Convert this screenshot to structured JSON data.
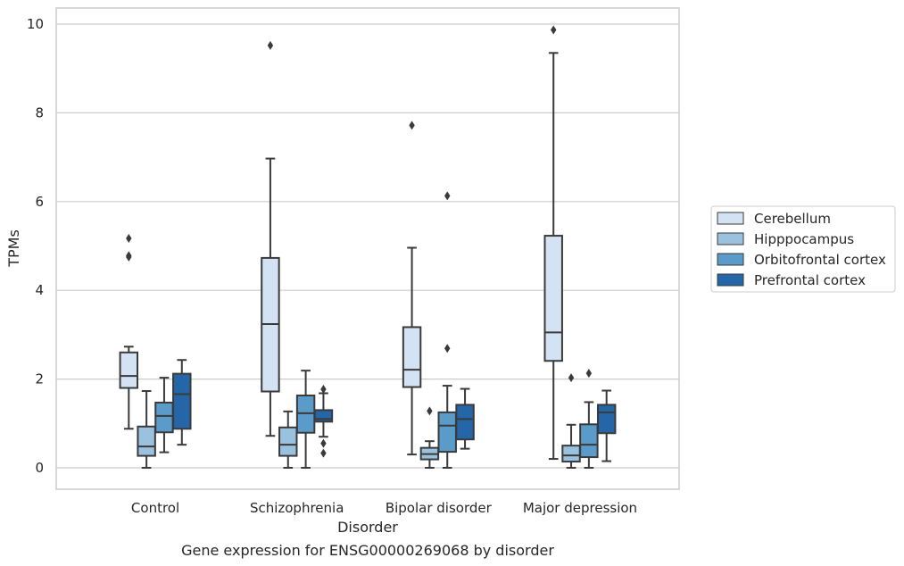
{
  "chart_data": {
    "type": "box",
    "title": "",
    "caption": "Gene expression for ENSG00000269068 by disorder",
    "xlabel": "Disorder",
    "ylabel": "TPMs",
    "ylim": [
      -0.45,
      10.35
    ],
    "yticks": [
      0,
      2,
      4,
      6,
      8,
      10
    ],
    "grid": "horizontal",
    "legend_position": "right",
    "categories": [
      "Control",
      "Schizophrenia",
      "Bipolar disorder",
      "Major depression"
    ],
    "series": [
      {
        "name": "Cerebellum",
        "color": "#d4e3f3",
        "boxes": [
          {
            "whisker_low": 0.88,
            "q1": 1.8,
            "median": 2.07,
            "q3": 2.6,
            "whisker_high": 2.73,
            "outliers": [
              4.75,
              4.78,
              5.17
            ]
          },
          {
            "whisker_low": 0.72,
            "q1": 1.72,
            "median": 3.24,
            "q3": 4.73,
            "whisker_high": 6.97,
            "outliers": [
              9.52
            ]
          },
          {
            "whisker_low": 0.3,
            "q1": 1.82,
            "median": 2.21,
            "q3": 3.17,
            "whisker_high": 4.96,
            "outliers": [
              7.72
            ]
          },
          {
            "whisker_low": 0.2,
            "q1": 2.41,
            "median": 3.05,
            "q3": 5.23,
            "whisker_high": 9.35,
            "outliers": [
              9.87
            ]
          }
        ]
      },
      {
        "name": "Hipppocampus",
        "color": "#9ac2df",
        "boxes": [
          {
            "whisker_low": 0.0,
            "q1": 0.27,
            "median": 0.48,
            "q3": 0.93,
            "whisker_high": 1.73,
            "outliers": []
          },
          {
            "whisker_low": 0.0,
            "q1": 0.27,
            "median": 0.52,
            "q3": 0.91,
            "whisker_high": 1.27,
            "outliers": []
          },
          {
            "whisker_low": 0.0,
            "q1": 0.19,
            "median": 0.31,
            "q3": 0.45,
            "whisker_high": 0.6,
            "outliers": [
              1.28
            ]
          },
          {
            "whisker_low": 0.0,
            "q1": 0.14,
            "median": 0.28,
            "q3": 0.5,
            "whisker_high": 0.97,
            "outliers": [
              2.03
            ]
          }
        ]
      },
      {
        "name": "Orbitofrontal cortex",
        "color": "#5a9bc9",
        "boxes": [
          {
            "whisker_low": 0.35,
            "q1": 0.8,
            "median": 1.17,
            "q3": 1.47,
            "whisker_high": 2.03,
            "outliers": []
          },
          {
            "whisker_low": 0.0,
            "q1": 0.79,
            "median": 1.23,
            "q3": 1.63,
            "whisker_high": 2.19,
            "outliers": []
          },
          {
            "whisker_low": 0.0,
            "q1": 0.36,
            "median": 0.95,
            "q3": 1.25,
            "whisker_high": 1.85,
            "outliers": [
              2.69,
              6.13
            ]
          },
          {
            "whisker_low": 0.0,
            "q1": 0.24,
            "median": 0.52,
            "q3": 0.98,
            "whisker_high": 1.48,
            "outliers": [
              2.13
            ]
          }
        ]
      },
      {
        "name": "Prefrontal cortex",
        "color": "#2566a8",
        "boxes": [
          {
            "whisker_low": 0.52,
            "q1": 0.88,
            "median": 1.66,
            "q3": 2.12,
            "whisker_high": 2.43,
            "outliers": []
          },
          {
            "whisker_low": 0.7,
            "q1": 1.04,
            "median": 1.1,
            "q3": 1.3,
            "whisker_high": 1.68,
            "outliers": [
              0.33,
              0.55,
              1.77
            ]
          },
          {
            "whisker_low": 0.43,
            "q1": 0.64,
            "median": 1.1,
            "q3": 1.42,
            "whisker_high": 1.78,
            "outliers": []
          },
          {
            "whisker_low": 0.15,
            "q1": 0.78,
            "median": 1.25,
            "q3": 1.42,
            "whisker_high": 1.74,
            "outliers": []
          }
        ]
      }
    ]
  }
}
